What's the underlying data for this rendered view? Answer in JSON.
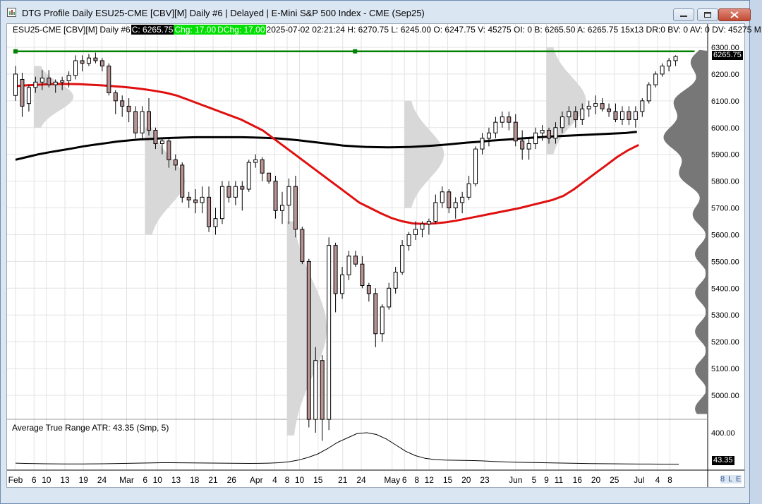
{
  "window": {
    "title": "DTG Profile Daily ESU25-CME [CBV][M]  Daily #6 | Delayed | E-Mini S&P 500 Index - CME (Sep25)",
    "status_text": "8 L E"
  },
  "header": {
    "symbol": "ESU25-CME [CBV][M]  Daily #6",
    "close": "C: 6265.75",
    "chg": "Chg: 17.00",
    "dchg": "DChg: 17.00",
    "rest": "2025-07-02 02:21:24 H: 6270.75 L: 6245.00 O: 6247.75 V: 45275 OI: 0 B: 6265.50 A: 6265.75 15x13 DR:0 BV: 0 AV: 0 DV: 45275 M"
  },
  "price_tag": "6265.75",
  "atr": {
    "label": "Average True Range  ATR: 43.35   (Smp, 5)",
    "value_tag": "43.35"
  },
  "colors": {
    "bg": "#ffffff",
    "grid": "#e3e3e3",
    "up_body": "#ffffff",
    "down_body": "#b79393",
    "ma_red": "#e01010",
    "ma_black": "#000000",
    "profile": "#d8d8d8",
    "vp_right": "#777777",
    "level_line": "#008000"
  },
  "chart_data": {
    "type": "candlestick",
    "y_ticks": [
      "6300.00",
      "6200.00",
      "6100.00",
      "6000.00",
      "5900.00",
      "5800.00",
      "5700.00",
      "5600.00",
      "5500.00",
      "5400.00",
      "5300.00",
      "5200.00",
      "5100.00",
      "5000.00"
    ],
    "atr_ticks": [
      "400.00"
    ],
    "x_labels": [
      {
        "t": "Feb",
        "i": 0
      },
      {
        "t": "6",
        "i": 3
      },
      {
        "t": "10",
        "i": 5
      },
      {
        "t": "13",
        "i": 8
      },
      {
        "t": "19",
        "i": 11
      },
      {
        "t": "24",
        "i": 14
      },
      {
        "t": "Mar",
        "i": 18
      },
      {
        "t": "6",
        "i": 21
      },
      {
        "t": "10",
        "i": 23
      },
      {
        "t": "13",
        "i": 26
      },
      {
        "t": "18",
        "i": 29
      },
      {
        "t": "21",
        "i": 32
      },
      {
        "t": "26",
        "i": 35
      },
      {
        "t": "Apr",
        "i": 39
      },
      {
        "t": "4",
        "i": 42
      },
      {
        "t": "8",
        "i": 44
      },
      {
        "t": "10",
        "i": 46
      },
      {
        "t": "15",
        "i": 49
      },
      {
        "t": "21",
        "i": 53
      },
      {
        "t": "24",
        "i": 56
      },
      {
        "t": "May",
        "i": 61
      },
      {
        "t": "6",
        "i": 63
      },
      {
        "t": "8",
        "i": 65
      },
      {
        "t": "12",
        "i": 67
      },
      {
        "t": "15",
        "i": 70
      },
      {
        "t": "20",
        "i": 73
      },
      {
        "t": "23",
        "i": 76
      },
      {
        "t": "Jun",
        "i": 81
      },
      {
        "t": "5",
        "i": 84
      },
      {
        "t": "9",
        "i": 86
      },
      {
        "t": "11",
        "i": 88
      },
      {
        "t": "16",
        "i": 91
      },
      {
        "t": "20",
        "i": 94
      },
      {
        "t": "25",
        "i": 97
      },
      {
        "t": "Jul",
        "i": 101
      },
      {
        "t": "4",
        "i": 104
      },
      {
        "t": "8",
        "i": 106
      }
    ],
    "level_line": 6285,
    "ohlc": [
      [
        6120,
        6230,
        6100,
        6200
      ],
      [
        6180,
        6205,
        6040,
        6080
      ],
      [
        6090,
        6160,
        6060,
        6150
      ],
      [
        6150,
        6190,
        6130,
        6170
      ],
      [
        6170,
        6215,
        6140,
        6185
      ],
      [
        6185,
        6215,
        6150,
        6160
      ],
      [
        6160,
        6180,
        6130,
        6170
      ],
      [
        6170,
        6190,
        6140,
        6175
      ],
      [
        6175,
        6210,
        6150,
        6195
      ],
      [
        6195,
        6270,
        6180,
        6250
      ],
      [
        6250,
        6270,
        6210,
        6240
      ],
      [
        6240,
        6275,
        6230,
        6260
      ],
      [
        6260,
        6280,
        6240,
        6250
      ],
      [
        6250,
        6260,
        6210,
        6230
      ],
      [
        6230,
        6240,
        6120,
        6130
      ],
      [
        6130,
        6140,
        6050,
        6100
      ],
      [
        6100,
        6120,
        6040,
        6080
      ],
      [
        6080,
        6110,
        6020,
        6060
      ],
      [
        6060,
        6080,
        5960,
        5980
      ],
      [
        5980,
        6080,
        5960,
        6060
      ],
      [
        6060,
        6110,
        5970,
        5990
      ],
      [
        5990,
        6000,
        5920,
        5940
      ],
      [
        5940,
        5960,
        5900,
        5950
      ],
      [
        5950,
        5960,
        5850,
        5880
      ],
      [
        5880,
        5900,
        5840,
        5860
      ],
      [
        5860,
        5870,
        5720,
        5740
      ],
      [
        5740,
        5760,
        5700,
        5730
      ],
      [
        5730,
        5770,
        5680,
        5720
      ],
      [
        5720,
        5780,
        5680,
        5740
      ],
      [
        5740,
        5780,
        5610,
        5630
      ],
      [
        5630,
        5700,
        5600,
        5660
      ],
      [
        5660,
        5800,
        5640,
        5780
      ],
      [
        5780,
        5800,
        5720,
        5740
      ],
      [
        5740,
        5800,
        5710,
        5780
      ],
      [
        5780,
        5800,
        5690,
        5770
      ],
      [
        5770,
        5880,
        5760,
        5870
      ],
      [
        5870,
        5900,
        5850,
        5880
      ],
      [
        5880,
        5890,
        5800,
        5830
      ],
      [
        5830,
        5830,
        5790,
        5800
      ],
      [
        5800,
        5820,
        5660,
        5690
      ],
      [
        5690,
        5760,
        5640,
        5710
      ],
      [
        5710,
        5810,
        5640,
        5780
      ],
      [
        5780,
        5820,
        5590,
        5620
      ],
      [
        5620,
        5630,
        5490,
        5500
      ],
      [
        5500,
        5510,
        4880,
        4910
      ],
      [
        4910,
        5180,
        4860,
        5130
      ],
      [
        5130,
        5150,
        4830,
        4910
      ],
      [
        4910,
        5590,
        4870,
        5560
      ],
      [
        5560,
        5570,
        5310,
        5380
      ],
      [
        5380,
        5480,
        5360,
        5450
      ],
      [
        5450,
        5540,
        5430,
        5520
      ],
      [
        5520,
        5540,
        5480,
        5490
      ],
      [
        5490,
        5520,
        5400,
        5410
      ],
      [
        5410,
        5420,
        5350,
        5380
      ],
      [
        5380,
        5400,
        5180,
        5230
      ],
      [
        5230,
        5340,
        5200,
        5330
      ],
      [
        5330,
        5420,
        5320,
        5400
      ],
      [
        5400,
        5480,
        5380,
        5460
      ],
      [
        5460,
        5580,
        5450,
        5560
      ],
      [
        5560,
        5610,
        5540,
        5600
      ],
      [
        5600,
        5650,
        5580,
        5620
      ],
      [
        5620,
        5650,
        5590,
        5640
      ],
      [
        5640,
        5660,
        5600,
        5650
      ],
      [
        5650,
        5750,
        5640,
        5720
      ],
      [
        5720,
        5780,
        5700,
        5760
      ],
      [
        5760,
        5770,
        5680,
        5700
      ],
      [
        5700,
        5740,
        5660,
        5720
      ],
      [
        5720,
        5760,
        5680,
        5740
      ],
      [
        5740,
        5820,
        5730,
        5790
      ],
      [
        5790,
        5930,
        5780,
        5920
      ],
      [
        5920,
        5980,
        5900,
        5960
      ],
      [
        5960,
        6000,
        5930,
        5980
      ],
      [
        5980,
        6040,
        5960,
        6020
      ],
      [
        6020,
        6060,
        6000,
        6040
      ],
      [
        6040,
        6060,
        5990,
        6020
      ],
      [
        6020,
        6050,
        5930,
        5950
      ],
      [
        5950,
        5990,
        5880,
        5920
      ],
      [
        5920,
        5960,
        5880,
        5940
      ],
      [
        5940,
        6000,
        5920,
        5980
      ],
      [
        5980,
        6010,
        5950,
        5990
      ],
      [
        5990,
        6000,
        5940,
        5960
      ],
      [
        5960,
        6020,
        5940,
        6000
      ],
      [
        6000,
        6060,
        5980,
        6040
      ],
      [
        6040,
        6080,
        6010,
        6060
      ],
      [
        6060,
        6080,
        6000,
        6030
      ],
      [
        6030,
        6090,
        6010,
        6070
      ],
      [
        6070,
        6100,
        6040,
        6080
      ],
      [
        6080,
        6120,
        6050,
        6090
      ],
      [
        6090,
        6110,
        6060,
        6070
      ],
      [
        6070,
        6090,
        6040,
        6060
      ],
      [
        6060,
        6090,
        6020,
        6030
      ],
      [
        6030,
        6080,
        6010,
        6060
      ],
      [
        6060,
        6080,
        6010,
        6030
      ],
      [
        6030,
        6080,
        6000,
        6060
      ],
      [
        6060,
        6110,
        6040,
        6100
      ],
      [
        6100,
        6170,
        6090,
        6160
      ],
      [
        6160,
        6210,
        6150,
        6200
      ],
      [
        6200,
        6240,
        6190,
        6230
      ],
      [
        6230,
        6260,
        6210,
        6250
      ],
      [
        6250,
        6270,
        6230,
        6265.75
      ]
    ],
    "sma_black": [
      5880,
      5890,
      5900,
      5908,
      5915,
      5922,
      5930,
      5936,
      5942,
      5948,
      5952,
      5956,
      5958,
      5960,
      5962,
      5963,
      5964,
      5964,
      5964,
      5964,
      5964,
      5963,
      5962,
      5960,
      5957,
      5953,
      5948,
      5943,
      5938,
      5933,
      5930,
      5928,
      5927,
      5926,
      5927,
      5928,
      5930,
      5933,
      5936,
      5940,
      5944,
      5947,
      5951,
      5954,
      5957,
      5960,
      5963,
      5966,
      5968,
      5970,
      5972,
      5974,
      5976,
      5978,
      5980,
      5984
    ],
    "sma_red": [
      6155,
      6158,
      6160,
      6162,
      6163,
      6163,
      6162,
      6160,
      6158,
      6155,
      6152,
      6148,
      6143,
      6137,
      6130,
      6120,
      6105,
      6090,
      6075,
      6060,
      6045,
      6030,
      6010,
      5990,
      5960,
      5930,
      5900,
      5870,
      5840,
      5810,
      5780,
      5750,
      5720,
      5700,
      5680,
      5662,
      5650,
      5642,
      5640,
      5642,
      5646,
      5652,
      5660,
      5668,
      5676,
      5684,
      5692,
      5700,
      5710,
      5720,
      5730,
      5745,
      5770,
      5800,
      5830,
      5860,
      5890,
      5915,
      5935
    ],
    "atr_series": [
      55,
      52,
      50,
      48,
      47,
      46,
      46,
      46,
      47,
      48,
      50,
      52,
      54,
      56,
      58,
      60,
      60,
      59,
      58,
      57,
      56,
      55,
      54,
      53,
      52,
      53,
      55,
      60,
      70,
      90,
      120,
      160,
      220,
      290,
      340,
      390,
      400,
      380,
      330,
      260,
      190,
      140,
      110,
      95,
      90,
      88,
      86,
      84,
      80,
      74,
      70,
      66,
      64,
      62,
      60,
      58,
      56,
      54,
      52,
      50,
      49,
      48,
      47,
      46,
      45,
      45,
      44,
      44,
      43.35
    ]
  }
}
